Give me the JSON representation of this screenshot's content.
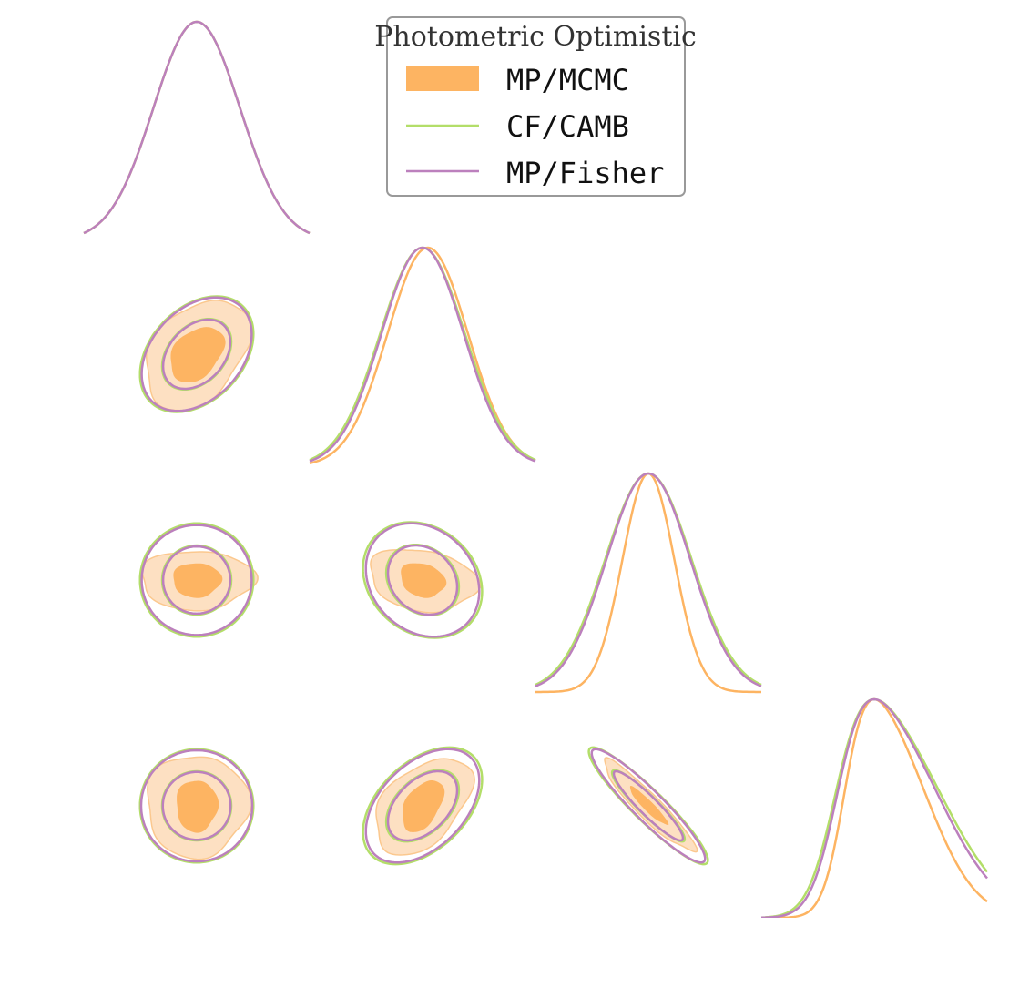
{
  "chart_data": {
    "type": "triangle-plot",
    "grid": false,
    "legend": {
      "title": "Photometric Optimistic",
      "placement": "top-center",
      "entries": [
        {
          "label": "MP/MCMC",
          "kind": "filled",
          "color": "#fdb462"
        },
        {
          "label": "CF/CAMB",
          "kind": "line",
          "color": "#b3de69"
        },
        {
          "label": "MP/Fisher",
          "kind": "line",
          "color": "#bc80bd"
        }
      ]
    },
    "colors": {
      "mcmc_inner": "#fdb462",
      "mcmc_outer": "#fde0c2",
      "mcmc_outer_edge": "#fbc88e",
      "camb": "#b3de69",
      "fisher": "#bc80bd"
    },
    "n_params": 4,
    "marginals": [
      {
        "col": 0,
        "mcmc": {
          "mu": 0.0,
          "sigma": 1.0
        },
        "camb": {
          "mu": 0.0,
          "sigma": 1.0
        },
        "fisher": {
          "mu": 0.0,
          "sigma": 1.0
        }
      },
      {
        "col": 1,
        "mcmc": {
          "mu": 0.12,
          "sigma": 0.93
        },
        "camb": {
          "mu": 0.0,
          "sigma": 0.98
        },
        "fisher": {
          "mu": 0.0,
          "sigma": 0.95
        }
      },
      {
        "col": 2,
        "mcmc": {
          "mu": 0.0,
          "sigma": 0.6
        },
        "camb": {
          "mu": 0.0,
          "sigma": 1.0
        },
        "fisher": {
          "mu": 0.0,
          "sigma": 0.97
        }
      },
      {
        "col": 3,
        "mcmc": {
          "mu": 0.0,
          "sigma": 0.85
        },
        "camb": {
          "mu": 0.0,
          "sigma": 1.1
        },
        "fisher": {
          "mu": 0.0,
          "sigma": 1.05
        },
        "skew": true
      }
    ],
    "pairs": [
      {
        "row": 1,
        "col": 0,
        "rho": 0.35,
        "mcmc_sx": [
          0.78,
          0.92
        ],
        "mcmc_sy": [
          0.8,
          0.97
        ],
        "camb_s": [
          1.0,
          1.02
        ],
        "fisher_s": [
          0.97,
          1.0
        ]
      },
      {
        "row": 2,
        "col": 0,
        "rho": 0.0,
        "mcmc_sx": [
          0.7,
          1.0
        ],
        "mcmc_sy": [
          0.5,
          0.52
        ],
        "camb_s": [
          1.0,
          1.0
        ],
        "fisher_s": [
          0.97,
          0.97
        ]
      },
      {
        "row": 2,
        "col": 1,
        "rho": -0.2,
        "mcmc_sx": [
          0.65,
          0.95
        ],
        "mcmc_sy": [
          0.5,
          0.55
        ],
        "camb_s": [
          1.05,
          1.02
        ],
        "fisher_s": [
          1.0,
          1.0
        ]
      },
      {
        "row": 3,
        "col": 0,
        "rho": 0.0,
        "mcmc_sx": [
          0.6,
          0.9
        ],
        "mcmc_sy": [
          0.75,
          0.9
        ],
        "camb_s": [
          1.0,
          1.0
        ],
        "fisher_s": [
          0.98,
          0.98
        ]
      },
      {
        "row": 3,
        "col": 1,
        "rho": 0.45,
        "mcmc_sx": [
          0.6,
          0.85
        ],
        "mcmc_sy": [
          0.75,
          0.85
        ],
        "camb_s": [
          1.05,
          1.03
        ],
        "fisher_s": [
          1.0,
          1.0
        ]
      },
      {
        "row": 3,
        "col": 2,
        "rho": -0.93,
        "mcmc_sx": [
          0.55,
          0.8
        ],
        "mcmc_sy": [
          0.55,
          0.8
        ],
        "camb_s": [
          1.05,
          1.03
        ],
        "fisher_s": [
          1.0,
          1.0
        ]
      }
    ]
  }
}
